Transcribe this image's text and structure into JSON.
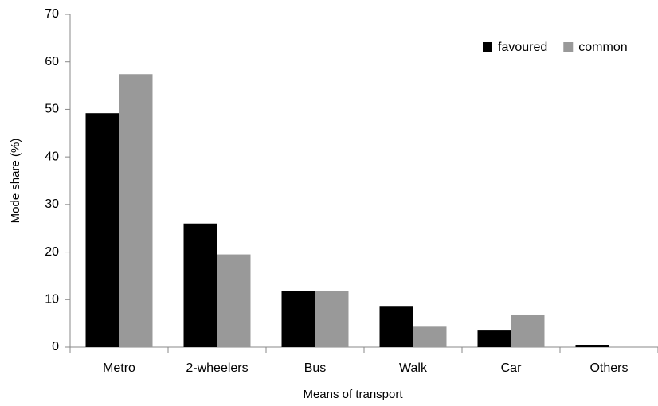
{
  "chart_data": {
    "type": "bar",
    "xlabel": "Means of transport",
    "ylabel": "Mode share (%)",
    "categories": [
      "Metro",
      "2-wheelers",
      "Bus",
      "Walk",
      "Car",
      "Others"
    ],
    "series": [
      {
        "name": "favoured",
        "color": "#000000",
        "values": [
          49.2,
          26,
          11.8,
          8.5,
          3.5,
          0.5
        ]
      },
      {
        "name": "common",
        "color": "#999999",
        "values": [
          57.4,
          19.5,
          11.8,
          4.3,
          6.7,
          0
        ]
      }
    ],
    "ylim": [
      0,
      70
    ],
    "yticks": [
      0,
      10,
      20,
      30,
      40,
      50,
      60,
      70
    ],
    "grid": false,
    "legend": "upper right"
  }
}
